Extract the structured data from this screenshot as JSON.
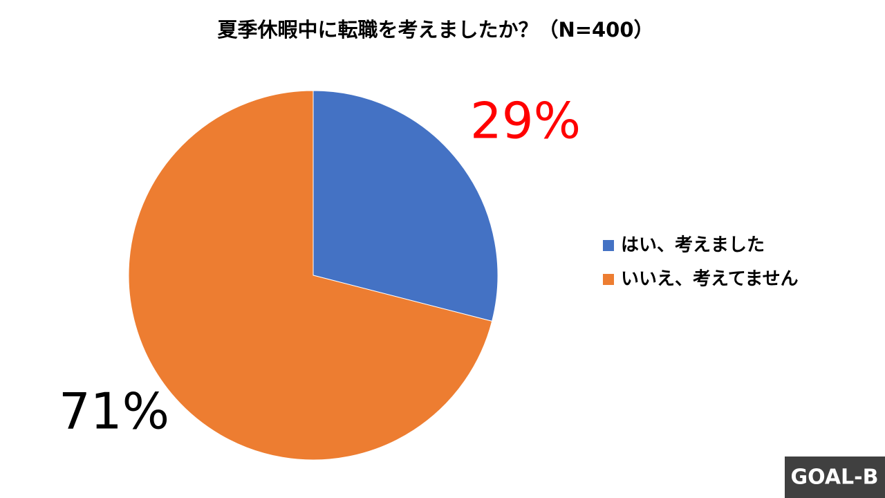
{
  "chart_data": {
    "type": "pie",
    "title": "夏季休暇中に転職を考えましたか？（N=400）",
    "categories": [
      "はい、考えました",
      "いいえ、考えてません"
    ],
    "values": [
      29,
      71
    ],
    "value_labels": [
      "29%",
      "71%"
    ],
    "colors": [
      "#4472c4",
      "#ed7d31"
    ],
    "value_label_colors": [
      "#ff0000",
      "#000000"
    ],
    "legend": "right",
    "logo": "GOAL-B"
  }
}
